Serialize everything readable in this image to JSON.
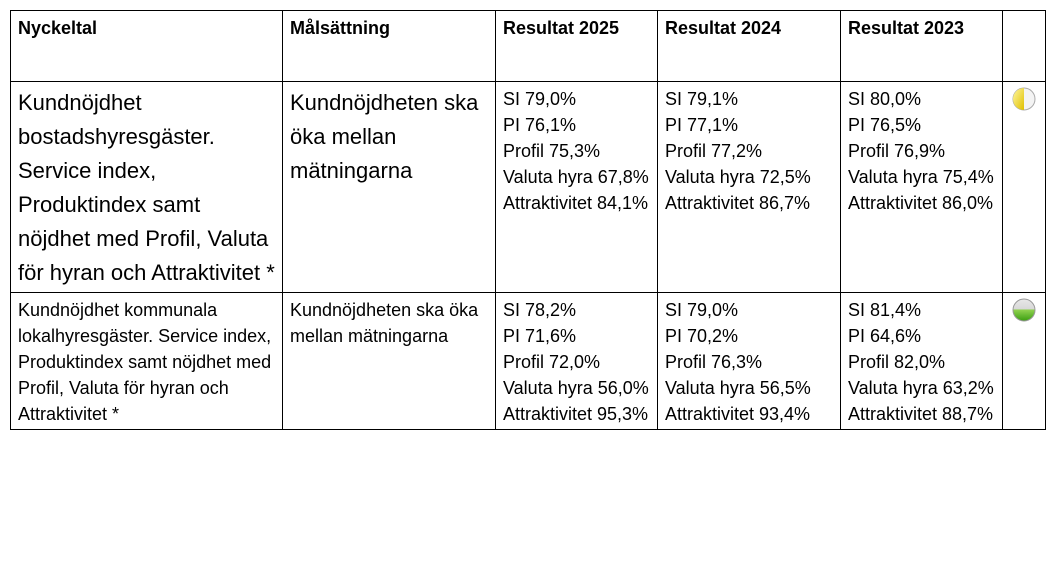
{
  "table": {
    "headers": [
      "Nyckeltal",
      "Målsättning",
      "Resultat 2025",
      "Resultat 2024",
      "Resultat 2023"
    ],
    "rows": [
      {
        "indicator": "Kundnöjdhet bostadshyresgäster. Service index, Produktindex samt nöjdhet med Profil, Valuta för hyran och Attraktivitet *",
        "goal": "Kundnöjdheten ska öka mellan mätningarna",
        "results": [
          [
            "SI 79,0%",
            "PI 76,1%",
            "Profil 75,3%",
            "Valuta hyra 67,8%",
            "Attraktivitet 84,1%"
          ],
          [
            "SI 79,1%",
            "PI 77,1%",
            "Profil 77,2%",
            "Valuta hyra 72,5%",
            "Attraktivitet 86,7%"
          ],
          [
            "SI 80,0%",
            "PI 76,5%",
            "Profil 76,9%",
            "Valuta hyra 75,4%",
            "Attraktivitet 86,0%"
          ]
        ]
      },
      {
        "indicator": "Kundnöjdhet kommunala lokalhyresgäster. Service index, Produktindex samt nöjdhet med Profil, Valuta för hyran och Attraktivitet *",
        "goal": "Kundnöjdheten ska öka mellan mätningarna",
        "results": [
          [
            "SI 78,2%",
            "PI 71,6%",
            "Profil 72,0%",
            "Valuta hyra 56,0%",
            "Attraktivitet 95,3%"
          ],
          [
            "SI 79,0%",
            "PI 70,2%",
            "Profil 76,3%",
            "Valuta hyra 56,5%",
            "Attraktivitet 93,4%"
          ],
          [
            "SI 81,4%",
            "PI 64,6%",
            "Profil 82,0%",
            "Valuta hyra 63,2%",
            "Attraktivitet 88,7%"
          ]
        ]
      }
    ]
  }
}
